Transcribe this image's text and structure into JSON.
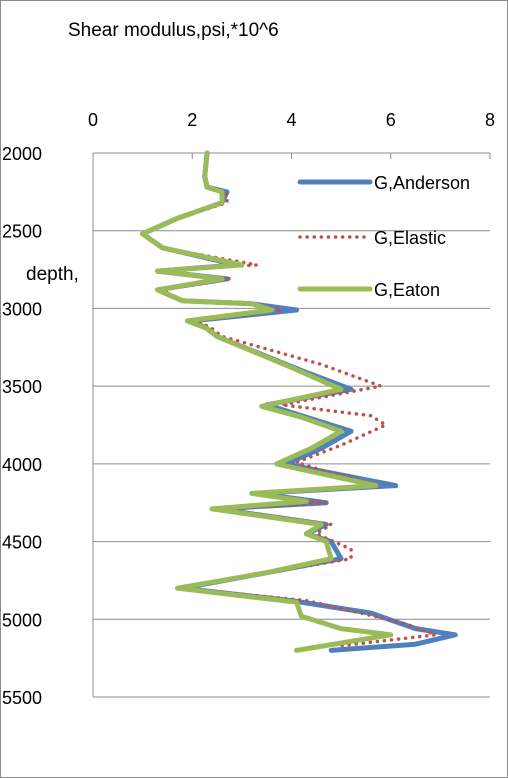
{
  "chart_data": {
    "type": "line",
    "title": "Shear modulus,psi,*10^6",
    "ylabel": "depth,",
    "xlabel": "",
    "xlim": [
      0,
      8
    ],
    "ylim": [
      2000,
      5500
    ],
    "y_inverted": true,
    "x_axis_position": "top",
    "xticks": [
      0,
      2,
      4,
      6,
      8
    ],
    "yticks": [
      2000,
      2500,
      3000,
      3500,
      4000,
      4500,
      5000,
      5500
    ],
    "grid": "horizontal",
    "legend_position": "right-inside",
    "series": [
      {
        "name": "G,Anderson",
        "color": "#4f81bd",
        "style": "solid",
        "points": [
          [
            2.3,
            2000
          ],
          [
            2.25,
            2150
          ],
          [
            2.3,
            2220
          ],
          [
            2.7,
            2250
          ],
          [
            2.6,
            2320
          ],
          [
            1.7,
            2420
          ],
          [
            1.0,
            2520
          ],
          [
            1.4,
            2610
          ],
          [
            2.9,
            2720
          ],
          [
            1.3,
            2760
          ],
          [
            2.7,
            2810
          ],
          [
            1.3,
            2880
          ],
          [
            1.8,
            2950
          ],
          [
            3.2,
            2970
          ],
          [
            4.1,
            3010
          ],
          [
            2.0,
            3080
          ],
          [
            2.3,
            3130
          ],
          [
            2.5,
            3180
          ],
          [
            4.2,
            3400
          ],
          [
            5.2,
            3520
          ],
          [
            3.5,
            3620
          ],
          [
            4.3,
            3700
          ],
          [
            5.2,
            3790
          ],
          [
            4.6,
            3900
          ],
          [
            3.9,
            4000
          ],
          [
            4.5,
            4040
          ],
          [
            6.1,
            4140
          ],
          [
            3.3,
            4190
          ],
          [
            4.7,
            4250
          ],
          [
            2.5,
            4290
          ],
          [
            4.7,
            4390
          ],
          [
            4.3,
            4450
          ],
          [
            4.8,
            4500
          ],
          [
            5.0,
            4610
          ],
          [
            3.5,
            4700
          ],
          [
            1.8,
            4800
          ],
          [
            4.0,
            4880
          ],
          [
            5.6,
            4960
          ],
          [
            6.5,
            5060
          ],
          [
            7.3,
            5100
          ],
          [
            6.5,
            5160
          ],
          [
            4.8,
            5200
          ]
        ]
      },
      {
        "name": "G,Elastic",
        "color": "#c0504d",
        "style": "dotted",
        "points": [
          [
            2.3,
            2000
          ],
          [
            2.25,
            2150
          ],
          [
            2.3,
            2220
          ],
          [
            2.7,
            2250
          ],
          [
            2.7,
            2320
          ],
          [
            1.7,
            2420
          ],
          [
            1.0,
            2520
          ],
          [
            1.4,
            2610
          ],
          [
            3.3,
            2720
          ],
          [
            1.3,
            2760
          ],
          [
            2.8,
            2810
          ],
          [
            1.4,
            2880
          ],
          [
            1.8,
            2950
          ],
          [
            3.2,
            2970
          ],
          [
            3.8,
            3010
          ],
          [
            2.1,
            3080
          ],
          [
            2.4,
            3130
          ],
          [
            2.6,
            3180
          ],
          [
            4.6,
            3360
          ],
          [
            5.8,
            3500
          ],
          [
            3.8,
            3620
          ],
          [
            5.6,
            3690
          ],
          [
            5.9,
            3750
          ],
          [
            5.0,
            3880
          ],
          [
            4.1,
            3990
          ],
          [
            4.6,
            4040
          ],
          [
            5.8,
            4140
          ],
          [
            3.3,
            4190
          ],
          [
            4.7,
            4250
          ],
          [
            2.6,
            4290
          ],
          [
            4.8,
            4390
          ],
          [
            4.5,
            4450
          ],
          [
            5.2,
            4550
          ],
          [
            5.2,
            4610
          ],
          [
            3.5,
            4700
          ],
          [
            1.8,
            4800
          ],
          [
            4.3,
            4880
          ],
          [
            5.4,
            4960
          ],
          [
            6.3,
            5030
          ],
          [
            6.9,
            5100
          ],
          [
            5.0,
            5170
          ]
        ]
      },
      {
        "name": "G,Eaton",
        "color": "#9bbb59",
        "style": "solid",
        "points": [
          [
            2.3,
            2000
          ],
          [
            2.25,
            2150
          ],
          [
            2.3,
            2220
          ],
          [
            2.6,
            2250
          ],
          [
            2.6,
            2320
          ],
          [
            1.7,
            2420
          ],
          [
            1.0,
            2520
          ],
          [
            1.4,
            2610
          ],
          [
            3.0,
            2720
          ],
          [
            1.3,
            2760
          ],
          [
            2.6,
            2810
          ],
          [
            1.3,
            2880
          ],
          [
            1.8,
            2950
          ],
          [
            3.2,
            2970
          ],
          [
            3.6,
            3010
          ],
          [
            1.9,
            3080
          ],
          [
            2.3,
            3130
          ],
          [
            2.5,
            3180
          ],
          [
            4.0,
            3380
          ],
          [
            5.0,
            3520
          ],
          [
            3.4,
            3630
          ],
          [
            4.2,
            3700
          ],
          [
            5.0,
            3790
          ],
          [
            4.4,
            3900
          ],
          [
            3.7,
            4000
          ],
          [
            4.4,
            4050
          ],
          [
            5.7,
            4140
          ],
          [
            3.2,
            4190
          ],
          [
            4.3,
            4240
          ],
          [
            2.4,
            4290
          ],
          [
            4.6,
            4390
          ],
          [
            4.3,
            4450
          ],
          [
            4.7,
            4500
          ],
          [
            4.8,
            4610
          ],
          [
            3.5,
            4700
          ],
          [
            1.7,
            4800
          ],
          [
            4.1,
            4890
          ],
          [
            4.2,
            4980
          ],
          [
            5.0,
            5060
          ],
          [
            6.0,
            5100
          ],
          [
            4.1,
            5200
          ]
        ]
      }
    ]
  }
}
